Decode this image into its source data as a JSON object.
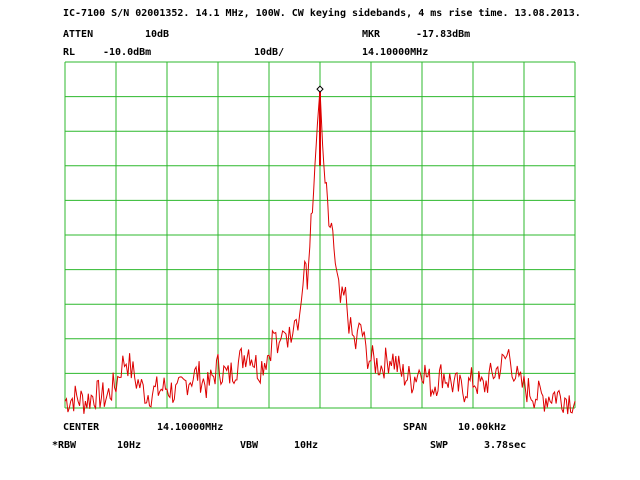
{
  "header": {
    "title": "IC-7100 S/N 02001352. 14.1 MHz, 100W. CW keying sidebands, 4 ms rise time. 13.08.2013.",
    "atten_label": "ATTEN",
    "atten_value": "10dB",
    "mkr_label": "MKR",
    "mkr_value": "-17.83dBm",
    "rl_label": "RL",
    "rl_value": "-10.0dBm",
    "scale_value": "10dB/",
    "mkr_freq": "14.10000MHz"
  },
  "footer": {
    "center_label": "CENTER",
    "center_value": "14.10000MHz",
    "span_label": "SPAN",
    "span_value": "10.00kHz",
    "rbw_label": "*RBW",
    "rbw_value": "10Hz",
    "vbw_label": "VBW",
    "vbw_value": "10Hz",
    "swp_label": "SWP",
    "swp_value": "3.78sec"
  },
  "colors": {
    "grid": "#2db82d",
    "trace": "#dd0000",
    "frame": "#2db82d"
  },
  "chart_data": {
    "type": "line",
    "grid": true,
    "x_range_khz": [
      -5,
      5
    ],
    "y_range_dbm": [
      -10,
      -110
    ],
    "marker": {
      "x_khz": 0,
      "y_dbm": -17.83
    },
    "series": [
      {
        "x_khz": [
          -5.0,
          -4.8,
          -4.6,
          -4.4,
          -4.2,
          -4.0,
          -3.9,
          -3.8,
          -3.7,
          -3.6,
          -3.5,
          -3.4,
          -3.2,
          -3.0,
          -2.8,
          -2.6,
          -2.4,
          -2.2,
          -2.0,
          -1.8,
          -1.6,
          -1.4,
          -1.2,
          -1.0,
          -0.9,
          -0.8,
          -0.7,
          -0.6,
          -0.5,
          -0.4,
          -0.3,
          -0.25,
          -0.2,
          -0.15,
          -0.1,
          -0.05,
          0.0,
          0.05,
          0.1,
          0.15,
          0.2,
          0.25,
          0.3,
          0.4,
          0.5,
          0.6,
          0.7,
          0.8,
          0.9,
          1.0,
          1.2,
          1.4,
          1.6,
          1.8,
          2.0,
          2.2,
          2.4,
          2.6,
          2.8,
          3.0,
          3.2,
          3.4,
          3.6,
          3.7,
          3.8,
          3.9,
          4.0,
          4.2,
          4.4,
          4.6,
          4.8,
          5.0
        ],
        "y_dbm": [
          -108,
          -107,
          -108,
          -106,
          -107,
          -103,
          -98,
          -96,
          -99,
          -102,
          -104,
          -106,
          -105,
          -104,
          -106,
          -102,
          -100,
          -104,
          -98,
          -101,
          -97,
          -93,
          -99,
          -94,
          -88,
          -95,
          -86,
          -90,
          -82,
          -84,
          -68,
          -76,
          -60,
          -55,
          -40,
          -28,
          -17.83,
          -34,
          -45,
          -52,
          -62,
          -58,
          -70,
          -80,
          -78,
          -88,
          -92,
          -86,
          -94,
          -96,
          -98,
          -95,
          -100,
          -102,
          -98,
          -104,
          -100,
          -103,
          -105,
          -102,
          -104,
          -100,
          -97,
          -94,
          -99,
          -103,
          -104,
          -106,
          -107,
          -106,
          -107,
          -108
        ]
      }
    ]
  }
}
